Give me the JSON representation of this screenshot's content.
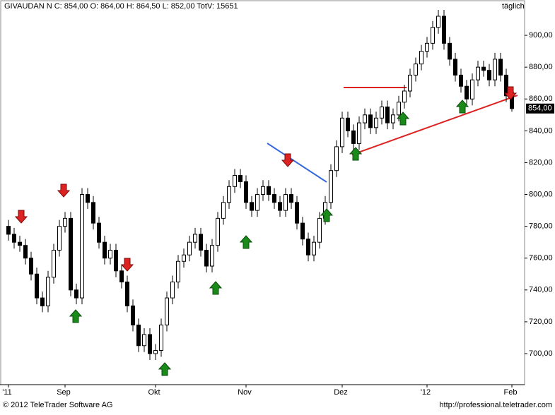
{
  "chart_data": {
    "type": "candlestick",
    "title": "GIVAUDAN N C: 854,00 O: 864,00 H: 864,50 L: 852,00 TotV: 15651",
    "subtitle": "täglich",
    "footer_left": "© 2012 TeleTrader Software AG",
    "footer_right": "http://professional.teletrader.com",
    "categories": [
      "'11",
      null,
      null,
      null,
      null,
      null,
      null,
      null,
      null,
      null,
      "Sep",
      null,
      null,
      null,
      null,
      null,
      null,
      null,
      null,
      null,
      null,
      null,
      null,
      null,
      null,
      null,
      "Okt",
      null,
      null,
      null,
      null,
      null,
      null,
      null,
      null,
      null,
      null,
      null,
      null,
      null,
      null,
      null,
      "Nov",
      null,
      null,
      null,
      null,
      null,
      null,
      null,
      null,
      null,
      null,
      null,
      null,
      null,
      null,
      null,
      null,
      "Dez",
      null,
      null,
      null,
      null,
      null,
      null,
      null,
      null,
      null,
      null,
      null,
      null,
      null,
      null,
      "'12",
      null,
      null,
      null,
      null,
      null,
      null,
      null,
      null,
      null,
      null,
      null,
      null,
      null,
      null,
      "Feb"
    ],
    "open": [
      780,
      775,
      770,
      768,
      760,
      750,
      735,
      730,
      748,
      765,
      780,
      785,
      740,
      735,
      800,
      795,
      782,
      770,
      760,
      765,
      752,
      745,
      730,
      718,
      705,
      712,
      700,
      702,
      718,
      735,
      745,
      758,
      762,
      770,
      775,
      765,
      755,
      768,
      785,
      795,
      805,
      812,
      808,
      795,
      790,
      800,
      805,
      800,
      795,
      790,
      800,
      795,
      782,
      772,
      762,
      770,
      785,
      795,
      815,
      830,
      848,
      840,
      832,
      845,
      850,
      842,
      848,
      855,
      845,
      850,
      858,
      865,
      875,
      882,
      890,
      895,
      905,
      912,
      895,
      885,
      875,
      868,
      860,
      872,
      880,
      878,
      872,
      885,
      875,
      864
    ],
    "high": [
      784,
      779,
      774,
      772,
      764,
      754,
      739,
      752,
      769,
      784,
      789,
      789,
      744,
      804,
      804,
      799,
      786,
      774,
      769,
      769,
      756,
      749,
      734,
      722,
      716,
      716,
      706,
      722,
      739,
      749,
      762,
      766,
      774,
      779,
      779,
      769,
      772,
      789,
      799,
      809,
      816,
      816,
      812,
      799,
      804,
      809,
      809,
      804,
      799,
      804,
      804,
      799,
      786,
      776,
      774,
      789,
      799,
      819,
      834,
      852,
      852,
      844,
      849,
      854,
      854,
      852,
      859,
      859,
      854,
      862,
      869,
      879,
      886,
      894,
      899,
      909,
      916,
      916,
      899,
      889,
      879,
      872,
      876,
      884,
      884,
      882,
      889,
      889,
      879,
      864.5
    ],
    "low": [
      771,
      766,
      764,
      756,
      746,
      731,
      726,
      726,
      744,
      761,
      776,
      736,
      731,
      731,
      791,
      778,
      766,
      756,
      756,
      748,
      741,
      726,
      714,
      701,
      701,
      696,
      696,
      698,
      714,
      731,
      741,
      754,
      758,
      766,
      761,
      751,
      751,
      764,
      781,
      791,
      801,
      804,
      791,
      786,
      786,
      796,
      796,
      791,
      786,
      786,
      791,
      778,
      768,
      758,
      758,
      766,
      781,
      791,
      811,
      826,
      836,
      828,
      828,
      841,
      838,
      838,
      844,
      841,
      841,
      846,
      854,
      861,
      871,
      878,
      886,
      891,
      901,
      891,
      881,
      871,
      864,
      856,
      856,
      868,
      874,
      868,
      868,
      871,
      858,
      852
    ],
    "close": [
      775,
      770,
      768,
      760,
      750,
      735,
      730,
      748,
      765,
      780,
      785,
      740,
      735,
      800,
      795,
      782,
      770,
      760,
      765,
      752,
      745,
      730,
      718,
      705,
      712,
      700,
      702,
      718,
      735,
      745,
      758,
      762,
      770,
      775,
      765,
      755,
      768,
      785,
      795,
      805,
      812,
      808,
      795,
      790,
      800,
      805,
      800,
      795,
      790,
      800,
      795,
      782,
      772,
      762,
      770,
      785,
      795,
      815,
      830,
      848,
      840,
      832,
      845,
      850,
      842,
      848,
      855,
      845,
      850,
      858,
      865,
      875,
      882,
      890,
      895,
      905,
      912,
      895,
      885,
      875,
      868,
      860,
      872,
      880,
      878,
      872,
      885,
      875,
      862,
      854
    ],
    "last_value": {
      "value": 854,
      "label": "854,00"
    },
    "ylim": [
      680.5,
      922.2
    ],
    "yticks": [
      {
        "value": 700,
        "label": "700,00"
      },
      {
        "value": 720,
        "label": "720,00"
      },
      {
        "value": 740,
        "label": "740,00"
      },
      {
        "value": 760,
        "label": "760,00"
      },
      {
        "value": 780,
        "label": "780,00"
      },
      {
        "value": 800,
        "label": "800,00"
      },
      {
        "value": 820,
        "label": "820,00"
      },
      {
        "value": 840,
        "label": "840,00"
      },
      {
        "value": 860,
        "label": "860,00"
      },
      {
        "value": 880,
        "label": "880,00"
      },
      {
        "value": 900,
        "label": "900,00"
      }
    ],
    "trendlines": [
      {
        "color": "#3366dd",
        "x": [
          45.75,
          56.25
        ],
        "y": [
          832.2,
          807.8
        ]
      },
      {
        "color": "#dd2222",
        "x": [
          60.75,
          90
        ],
        "y": [
          825,
          862.3
        ]
      },
      {
        "color": "#dd2222",
        "x": [
          59.25,
          70.4
        ],
        "y": [
          867.2,
          867.2
        ]
      }
    ]
  }
}
